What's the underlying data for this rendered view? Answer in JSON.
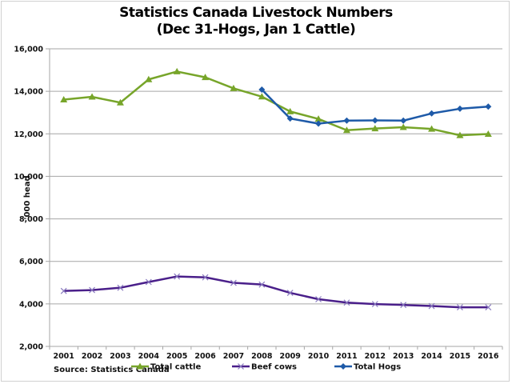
{
  "chart_data": {
    "type": "line",
    "title": "Statistics Canada Livestock Numbers",
    "subtitle": "(Dec 31-Hogs, Jan 1 Cattle)",
    "xlabel": "",
    "ylabel": "'000 head",
    "ylim": [
      2000,
      16000
    ],
    "yticks": [
      2000,
      4000,
      6000,
      8000,
      10000,
      12000,
      14000,
      16000
    ],
    "ytick_labels": [
      "2,000",
      "4,000",
      "6,000",
      "8,000",
      "10,000",
      "12,000",
      "14,000",
      "16,000"
    ],
    "grid": true,
    "categories": [
      "2001",
      "2002",
      "2003",
      "2004",
      "2005",
      "2006",
      "2007",
      "2008",
      "2009",
      "2010",
      "2011",
      "2012",
      "2013",
      "2014",
      "2015",
      "2016"
    ],
    "series": [
      {
        "name": "Total cattle",
        "color": "#77a52a",
        "marker": "triangle",
        "values": [
          13610,
          13740,
          13470,
          14560,
          14930,
          14660,
          14140,
          13750,
          13050,
          12700,
          12170,
          12250,
          12310,
          12230,
          11930,
          11990
        ]
      },
      {
        "name": "Beef cows",
        "color": "#4a1f8a",
        "marker": "x",
        "values": [
          4610,
          4650,
          4760,
          5030,
          5290,
          5250,
          4990,
          4910,
          4520,
          4220,
          4060,
          3990,
          3950,
          3900,
          3840,
          3840
        ]
      },
      {
        "name": "Total Hogs",
        "color": "#1e5aa8",
        "marker": "diamond",
        "values": [
          null,
          null,
          null,
          null,
          null,
          null,
          null,
          14080,
          12720,
          12480,
          12620,
          12630,
          12620,
          12960,
          13180,
          13280
        ]
      }
    ],
    "legend": "bottom",
    "source": "Source: Statistics Canada"
  }
}
